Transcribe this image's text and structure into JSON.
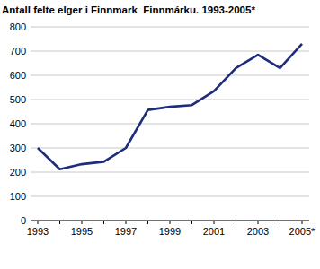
{
  "chart_data": {
    "type": "line",
    "title": "Antall felte elger i Finnmark  Finnmárku. 1993-2005*",
    "categories": [
      "1993",
      null,
      "1995",
      null,
      "1997",
      null,
      "1999",
      null,
      "2001",
      null,
      "2003",
      null,
      "2005*"
    ],
    "values": [
      300,
      212,
      233,
      243,
      300,
      457,
      470,
      477,
      535,
      630,
      685,
      630,
      730
    ],
    "color": "#1f2b7b",
    "ylim": [
      0,
      800
    ],
    "yticks": [
      0,
      100,
      200,
      300,
      400,
      500,
      600,
      700,
      800
    ],
    "grid": true
  }
}
